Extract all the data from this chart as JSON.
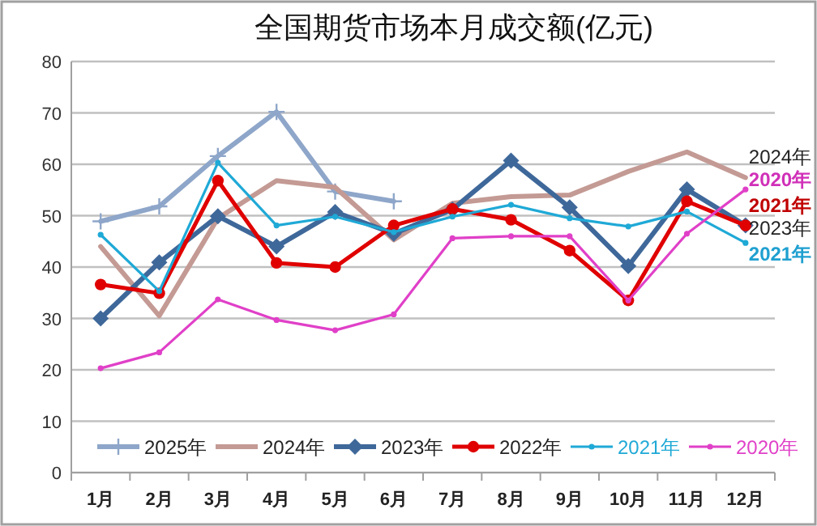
{
  "chart_data": {
    "type": "line",
    "title": "全国期货市场本月成交额(亿元)",
    "categories": [
      "1月",
      "2月",
      "3月",
      "4月",
      "5月",
      "6月",
      "7月",
      "8月",
      "9月",
      "10月",
      "11月",
      "12月"
    ],
    "series": [
      {
        "name": "2025年",
        "color": "#8ea6c9",
        "marker": "cross",
        "values": [
          48.9,
          51.8,
          61.6,
          70.2,
          54.7,
          52.8,
          null,
          null,
          null,
          null,
          null,
          null
        ]
      },
      {
        "name": "2024年",
        "color": "#c49a94",
        "marker": "none",
        "values": [
          44.0,
          30.5,
          49.5,
          56.8,
          55.5,
          45.3,
          52.4,
          53.7,
          54.0,
          58.6,
          62.4,
          57.4
        ]
      },
      {
        "name": "2023年",
        "color": "#3f689a",
        "marker": "diamond",
        "values": [
          30.0,
          40.9,
          49.9,
          44.0,
          50.7,
          46.5,
          51.2,
          60.7,
          51.6,
          40.2,
          55.1,
          48.1
        ]
      },
      {
        "name": "2022年",
        "color": "#e00000",
        "marker": "circle",
        "values": [
          36.6,
          34.9,
          56.8,
          40.8,
          40.0,
          48.1,
          51.3,
          49.2,
          43.2,
          33.5,
          52.8,
          48.1
        ]
      },
      {
        "name": "2021年",
        "color": "#1fa9d6",
        "marker": "circle",
        "values": [
          46.3,
          35.3,
          60.3,
          48.1,
          49.8,
          46.8,
          49.8,
          52.1,
          49.5,
          47.9,
          50.8,
          44.7
        ]
      },
      {
        "name": "2020年",
        "color": "#e040c8",
        "marker": "circle",
        "values": [
          20.3,
          23.4,
          33.7,
          29.7,
          27.7,
          30.8,
          45.6,
          46.0,
          46.0,
          33.5,
          46.5,
          55.1
        ]
      }
    ],
    "ylim": [
      0,
      80
    ],
    "yticks": [
      0,
      10,
      20,
      30,
      40,
      50,
      60,
      70,
      80
    ],
    "grid": "y",
    "legend": "bottom",
    "annotations": [
      "2024年",
      "2020年",
      "2021年",
      "2023年",
      "2021年"
    ]
  }
}
